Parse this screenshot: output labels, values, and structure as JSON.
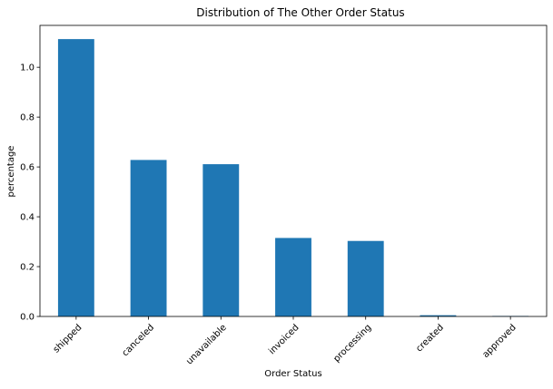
{
  "chart_data": {
    "type": "bar",
    "title": "Distribution of The Other Order Status",
    "xlabel": "Order Status",
    "ylabel": "percentage",
    "categories": [
      "shipped",
      "canceled",
      "unavailable",
      "invoiced",
      "processing",
      "created",
      "approved"
    ],
    "values": [
      1.113,
      0.628,
      0.611,
      0.315,
      0.303,
      0.005,
      0.002
    ],
    "ylim": [
      0,
      1.168
    ],
    "yticks": [
      "0.0",
      "0.2",
      "0.4",
      "0.6",
      "0.8",
      "1.0"
    ],
    "grid": false,
    "legend": "none",
    "colors": {
      "bar": "#1f77b4",
      "axis": "#000000"
    }
  }
}
